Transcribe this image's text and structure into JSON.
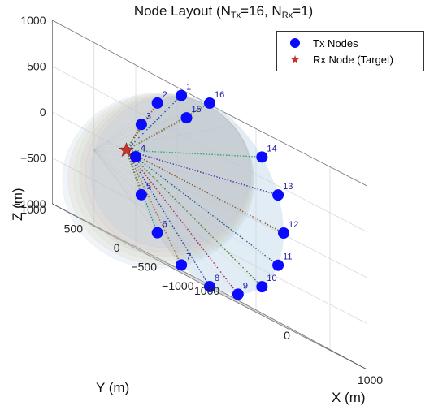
{
  "title": {
    "prefix": "Node Layout (N",
    "sub1": "Tx",
    "mid": "=16, N",
    "sub2": "Rx",
    "suffix": "=1)"
  },
  "legend": {
    "tx_label": "Tx Nodes",
    "rx_label": "Rx Node (Target)"
  },
  "colors": {
    "tx_marker": "#0a0aff",
    "rx_marker": "#c8322a",
    "label": "#1a1aa8"
  },
  "chart_data": {
    "type": "scatter",
    "title": "Node Layout (NTx=16, NRx=1)",
    "xlabel": "X (m)",
    "ylabel": "Y (m)",
    "zlabel": "Z (m)",
    "xlim": [
      -1000,
      1000
    ],
    "ylim": [
      -1000,
      1000
    ],
    "zlim": [
      -1000,
      1000
    ],
    "x_ticks": [
      -1000,
      0,
      1000
    ],
    "y_ticks": [
      1000,
      500,
      0,
      -500,
      -1000
    ],
    "z_ticks": [
      1000,
      500,
      0,
      -500,
      -1000
    ],
    "x_tick_labels": [
      "−1000",
      "0",
      "1000"
    ],
    "y_tick_labels": [
      "1000",
      "500",
      "0",
      "−500",
      "−1000"
    ],
    "z_tick_labels": [
      "1000",
      "500",
      "0",
      "−500",
      "−1000"
    ],
    "grid": true,
    "legend_position": "top-right",
    "rx_node": {
      "x": -1000,
      "y": 0,
      "z": 0
    },
    "tx_nodes": [
      {
        "id": "1",
        "x": 0,
        "y": 383,
        "z": 924
      },
      {
        "id": "2",
        "x": 0,
        "y": 707,
        "z": 707
      },
      {
        "id": "3",
        "x": 0,
        "y": 924,
        "z": 383
      },
      {
        "id": "4",
        "x": 0,
        "y": 1000,
        "z": 0
      },
      {
        "id": "5",
        "x": 0,
        "y": 924,
        "z": -383
      },
      {
        "id": "6",
        "x": 0,
        "y": 707,
        "z": -707
      },
      {
        "id": "7",
        "x": 0,
        "y": 383,
        "z": -924
      },
      {
        "id": "8",
        "x": 0,
        "y": 0,
        "z": -1000
      },
      {
        "id": "9",
        "x": 0,
        "y": -383,
        "z": -924
      },
      {
        "id": "10",
        "x": 0,
        "y": -707,
        "z": -707
      },
      {
        "id": "11",
        "x": 0,
        "y": -924,
        "z": -383
      },
      {
        "id": "12",
        "x": 0,
        "y": -1000,
        "z": 0
      },
      {
        "id": "13",
        "x": 0,
        "y": -924,
        "z": 383
      },
      {
        "id": "14",
        "x": 0,
        "y": -707,
        "z": 707
      },
      {
        "id": "15",
        "x": -500,
        "y": -250,
        "z": 700
      },
      {
        "id": "16",
        "x": 0,
        "y": 0,
        "z": 1000
      }
    ]
  }
}
